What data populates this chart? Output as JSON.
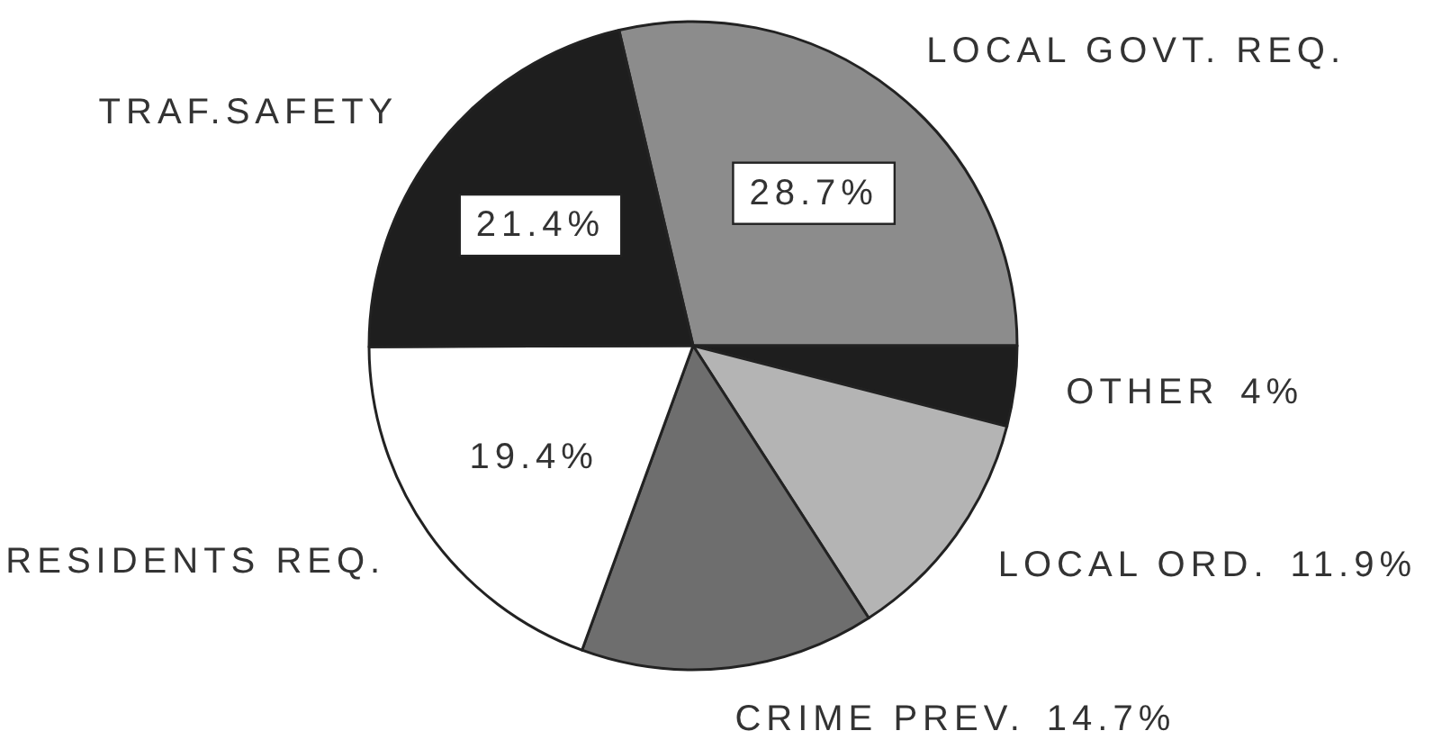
{
  "chart_data": {
    "type": "pie",
    "categories": [
      "LOCAL GOVT. REQ.",
      "OTHER",
      "LOCAL ORD.",
      "CRIME PREV.",
      "RESIDENTS REQ.",
      "TRAF.SAFETY"
    ],
    "values": [
      28.7,
      4,
      11.9,
      14.7,
      19.4,
      21.4
    ],
    "value_labels": [
      "28.7%",
      "4%",
      "11.9%",
      "14.7%",
      "19.4%",
      "21.4%"
    ],
    "colors": [
      "#8c8c8c",
      "#1e1e1e",
      "#b4b4b4",
      "#6e6e6e",
      "#ffffff",
      "#1e1e1e"
    ]
  }
}
